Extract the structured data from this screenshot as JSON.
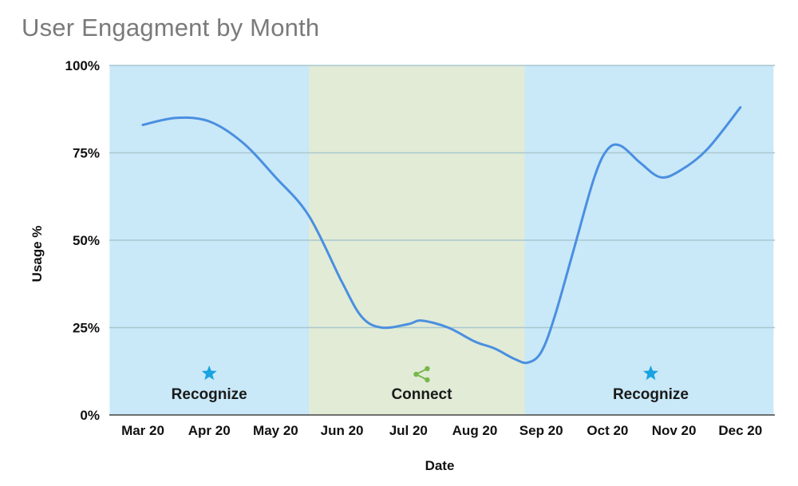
{
  "chart_data": {
    "type": "line",
    "title": "User Engagment by Month",
    "xlabel": "Date",
    "ylabel": "Usage %",
    "categories": [
      "Mar 20",
      "Apr 20",
      "May 20",
      "Jun 20",
      "Jul 20",
      "Aug 20",
      "Sep 20",
      "Oct 20",
      "Nov 20",
      "Dec 20"
    ],
    "y_ticks": [
      "0%",
      "25%",
      "50%",
      "75%",
      "100%"
    ],
    "ylim": [
      0,
      100
    ],
    "grid": true,
    "series": [
      {
        "values": [
          {
            "x": 0.0,
            "y": 83
          },
          {
            "x": 0.5,
            "y": 85
          },
          {
            "x": 1.0,
            "y": 84
          },
          {
            "x": 1.5,
            "y": 78
          },
          {
            "x": 2.0,
            "y": 68
          },
          {
            "x": 2.5,
            "y": 57
          },
          {
            "x": 3.0,
            "y": 38
          },
          {
            "x": 3.3,
            "y": 28
          },
          {
            "x": 3.6,
            "y": 25
          },
          {
            "x": 4.0,
            "y": 26
          },
          {
            "x": 4.2,
            "y": 27
          },
          {
            "x": 4.6,
            "y": 25
          },
          {
            "x": 5.0,
            "y": 21
          },
          {
            "x": 5.3,
            "y": 19
          },
          {
            "x": 5.6,
            "y": 16
          },
          {
            "x": 5.8,
            "y": 15
          },
          {
            "x": 6.0,
            "y": 18
          },
          {
            "x": 6.2,
            "y": 28
          },
          {
            "x": 6.5,
            "y": 48
          },
          {
            "x": 6.8,
            "y": 68
          },
          {
            "x": 7.0,
            "y": 76
          },
          {
            "x": 7.2,
            "y": 77
          },
          {
            "x": 7.5,
            "y": 72
          },
          {
            "x": 7.8,
            "y": 68
          },
          {
            "x": 8.1,
            "y": 70
          },
          {
            "x": 8.5,
            "y": 76
          },
          {
            "x": 9.0,
            "y": 88
          }
        ]
      }
    ],
    "regions": [
      {
        "label": "Recognize",
        "from": -0.5,
        "to": 2.5,
        "color": "#c9e8f8",
        "icon": "star-icon",
        "icon_color": "#1aa3e0",
        "label_x": 1.0
      },
      {
        "label": "Connect",
        "from": 2.5,
        "to": 5.75,
        "color": "#e1ebd6",
        "icon": "share-icon",
        "icon_color": "#77b74a",
        "label_x": 4.2
      },
      {
        "label": "Recognize",
        "from": 5.75,
        "to": 9.5,
        "color": "#c9e8f8",
        "icon": "star-icon",
        "icon_color": "#1aa3e0",
        "label_x": 7.65
      }
    ],
    "line_color": "#4a8fe0"
  }
}
